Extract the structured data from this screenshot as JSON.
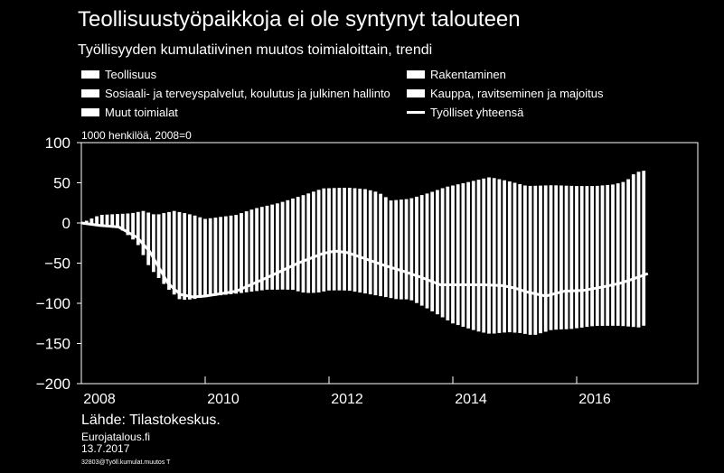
{
  "title": "Teollisuustyöpaikkoja ei ole syntynyt talouteen",
  "subtitle": "Työllisyyden kumulatiivinen muutos toimialoittain, trendi",
  "unit_label": "1000 henkilöä, 2008=0",
  "source": "Lähde: Tilastokeskus.",
  "site": "Eurojatalous.fi",
  "date": "13.7.2017",
  "code": "32803@Työll.kumulat.muutos T",
  "colors": {
    "background": "#000000",
    "bars": "#ffffff",
    "line": "#ffffff"
  },
  "legend": [
    {
      "label": "Teollisuus",
      "kind": "bar"
    },
    {
      "label": "Rakentaminen",
      "kind": "bar"
    },
    {
      "label": "Sosiaali- ja terveyspalvelut, koulutus ja julkinen hallinto",
      "kind": "bar"
    },
    {
      "label": "Kauppa, ravitseminen ja majoitus",
      "kind": "bar"
    },
    {
      "label": "Muut toimialat",
      "kind": "bar"
    },
    {
      "label": "Työlliset yhteensä",
      "kind": "line"
    }
  ],
  "chart_data": {
    "type": "bar",
    "stacked": true,
    "ylim": [
      -200,
      100
    ],
    "yticks": [
      "100",
      "50",
      "0",
      "−50",
      "−100",
      "−150",
      "−200"
    ],
    "ytick_values": [
      100,
      50,
      0,
      -50,
      -100,
      -150,
      -200
    ],
    "xticks": [
      "2008",
      "2010",
      "2012",
      "2014",
      "2016"
    ],
    "xtick_values": [
      2008,
      2010,
      2012,
      2014,
      2016
    ],
    "xlim": [
      2007.8,
      2017.6
    ],
    "grid": false,
    "legend_position": "top",
    "stack_top_anchors": [
      [
        2008.0,
        0
      ],
      [
        2008.3,
        10
      ],
      [
        2008.8,
        12
      ],
      [
        2009.0,
        15
      ],
      [
        2009.2,
        10
      ],
      [
        2009.5,
        15
      ],
      [
        2009.8,
        10
      ],
      [
        2010.0,
        5
      ],
      [
        2010.5,
        10
      ],
      [
        2010.8,
        18
      ],
      [
        2011.2,
        25
      ],
      [
        2011.6,
        35
      ],
      [
        2011.9,
        43
      ],
      [
        2012.3,
        44
      ],
      [
        2012.6,
        42
      ],
      [
        2012.8,
        38
      ],
      [
        2013.0,
        28
      ],
      [
        2013.3,
        30
      ],
      [
        2013.6,
        37
      ],
      [
        2013.9,
        45
      ],
      [
        2014.2,
        50
      ],
      [
        2014.6,
        57
      ],
      [
        2014.9,
        52
      ],
      [
        2015.2,
        46
      ],
      [
        2015.6,
        47
      ],
      [
        2016.0,
        46
      ],
      [
        2016.3,
        46
      ],
      [
        2016.6,
        48
      ],
      [
        2016.8,
        52
      ],
      [
        2016.95,
        63
      ],
      [
        2017.15,
        66
      ]
    ],
    "stack_bottom_anchors": [
      [
        2008.0,
        0
      ],
      [
        2008.3,
        -2
      ],
      [
        2008.6,
        -5
      ],
      [
        2008.9,
        -25
      ],
      [
        2009.1,
        -55
      ],
      [
        2009.4,
        -82
      ],
      [
        2009.6,
        -96
      ],
      [
        2009.8,
        -95
      ],
      [
        2010.0,
        -92
      ],
      [
        2010.5,
        -88
      ],
      [
        2011.0,
        -83
      ],
      [
        2011.4,
        -83
      ],
      [
        2011.6,
        -87
      ],
      [
        2011.8,
        -87
      ],
      [
        2012.0,
        -84
      ],
      [
        2012.3,
        -84
      ],
      [
        2012.6,
        -88
      ],
      [
        2012.9,
        -92
      ],
      [
        2013.1,
        -95
      ],
      [
        2013.3,
        -95
      ],
      [
        2013.6,
        -107
      ],
      [
        2014.0,
        -125
      ],
      [
        2014.4,
        -135
      ],
      [
        2014.6,
        -138
      ],
      [
        2014.9,
        -136
      ],
      [
        2015.1,
        -137
      ],
      [
        2015.3,
        -140
      ],
      [
        2015.6,
        -133
      ],
      [
        2015.9,
        -132
      ],
      [
        2016.3,
        -128
      ],
      [
        2016.7,
        -128
      ],
      [
        2017.0,
        -130
      ],
      [
        2017.15,
        -126
      ]
    ],
    "series": [
      {
        "name": "Työlliset yhteensä",
        "type": "line",
        "points": [
          [
            2008.0,
            0
          ],
          [
            2008.3,
            -3
          ],
          [
            2008.6,
            -5
          ],
          [
            2008.9,
            -18
          ],
          [
            2009.1,
            -35
          ],
          [
            2009.4,
            -75
          ],
          [
            2009.6,
            -89
          ],
          [
            2009.8,
            -92
          ],
          [
            2010.0,
            -91
          ],
          [
            2010.5,
            -85
          ],
          [
            2011.0,
            -68
          ],
          [
            2011.5,
            -50
          ],
          [
            2011.9,
            -38
          ],
          [
            2012.1,
            -35
          ],
          [
            2012.3,
            -37
          ],
          [
            2012.6,
            -45
          ],
          [
            2012.9,
            -53
          ],
          [
            2013.2,
            -60
          ],
          [
            2013.5,
            -68
          ],
          [
            2013.8,
            -77
          ],
          [
            2014.2,
            -77
          ],
          [
            2014.5,
            -77
          ],
          [
            2014.8,
            -78
          ],
          [
            2015.0,
            -81
          ],
          [
            2015.2,
            -86
          ],
          [
            2015.5,
            -91
          ],
          [
            2015.8,
            -85
          ],
          [
            2016.1,
            -84
          ],
          [
            2016.4,
            -80
          ],
          [
            2016.7,
            -75
          ],
          [
            2016.9,
            -70
          ],
          [
            2017.15,
            -63
          ]
        ]
      }
    ]
  }
}
